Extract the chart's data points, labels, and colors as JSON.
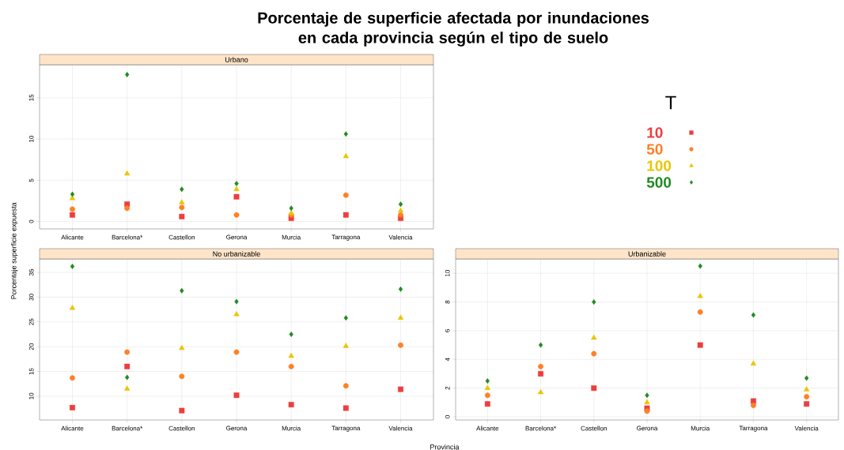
{
  "chart_data": [
    {
      "type": "scatter",
      "title": "Porcentaje de superficie afectada por inundaciones en cada provincia según el tipo de suelo",
      "subtitle": "Urbano",
      "categories": [
        "Alicante",
        "Barcelona*",
        "Castellon",
        "Gerona",
        "Murcia",
        "Tarragona",
        "Valencia"
      ],
      "legend": "right",
      "legend_title": "T",
      "grid": true,
      "ylim": [
        -0.9,
        19
      ],
      "yticks": [
        0,
        5,
        10,
        15
      ],
      "series": [
        {
          "name": "10",
          "color": "#ee3d3d",
          "marker": "square",
          "values": [
            0.8,
            2.1,
            0.6,
            3.0,
            0.4,
            0.8,
            0.4
          ]
        },
        {
          "name": "50",
          "color": "#ff8026",
          "marker": "circle",
          "values": [
            1.5,
            1.6,
            1.7,
            0.8,
            0.8,
            3.2,
            0.8
          ]
        },
        {
          "name": "100",
          "color": "#eac500",
          "marker": "triangle",
          "values": [
            2.8,
            5.8,
            2.3,
            3.9,
            1.0,
            7.9,
            1.3
          ]
        },
        {
          "name": "500",
          "color": "#1f8b22",
          "marker": "diamond",
          "values": [
            3.3,
            17.8,
            3.9,
            4.6,
            1.6,
            10.6,
            2.1
          ]
        }
      ]
    },
    {
      "type": "scatter",
      "title": "No urbanizable",
      "ylabel": "Porcentaje superficie expuesta",
      "xlabel": "Provincia",
      "categories": [
        "Alicante",
        "Barcelona*",
        "Castellon",
        "Gerona",
        "Murcia",
        "Tarragona",
        "Valencia"
      ],
      "grid": true,
      "ylim": [
        5.2,
        37.7
      ],
      "yticks": [
        10,
        15,
        20,
        25,
        30,
        35
      ],
      "series": [
        {
          "color": "#ee3d3d",
          "marker": "square",
          "values": [
            7.7,
            16.0,
            7.1,
            10.2,
            8.3,
            7.6,
            11.4
          ]
        },
        {
          "color": "#ff8026",
          "marker": "circle",
          "values": [
            13.7,
            18.9,
            14.0,
            18.9,
            16.0,
            12.1,
            20.3
          ]
        },
        {
          "color": "#eac500",
          "marker": "triangle",
          "values": [
            27.8,
            11.5,
            19.7,
            26.5,
            18.1,
            20.1,
            25.8
          ]
        },
        {
          "color": "#1f8b22",
          "marker": "diamond",
          "values": [
            36.2,
            13.8,
            31.3,
            29.1,
            22.5,
            25.8,
            31.6
          ]
        }
      ]
    },
    {
      "type": "scatter",
      "title": "Urbanizable",
      "categories": [
        "Alicante",
        "Barcelona*",
        "Castellon",
        "Gerona",
        "Murcia",
        "Tarragona",
        "Valencia"
      ],
      "grid": true,
      "ylim": [
        -0.22,
        11.0
      ],
      "yticks": [
        0,
        2,
        4,
        6,
        8,
        10
      ],
      "series": [
        {
          "color": "#ee3d3d",
          "marker": "square",
          "values": [
            0.9,
            3.0,
            2.0,
            0.6,
            5.0,
            1.1,
            0.9
          ]
        },
        {
          "color": "#ff8026",
          "marker": "circle",
          "values": [
            1.5,
            3.5,
            4.4,
            0.4,
            7.3,
            0.8,
            1.4
          ]
        },
        {
          "color": "#eac500",
          "marker": "triangle",
          "values": [
            2.0,
            1.7,
            5.5,
            1.0,
            8.4,
            3.7,
            1.9
          ]
        },
        {
          "color": "#1f8b22",
          "marker": "diamond",
          "values": [
            2.5,
            5.0,
            8.0,
            1.5,
            10.5,
            7.1,
            2.7
          ]
        }
      ]
    }
  ]
}
